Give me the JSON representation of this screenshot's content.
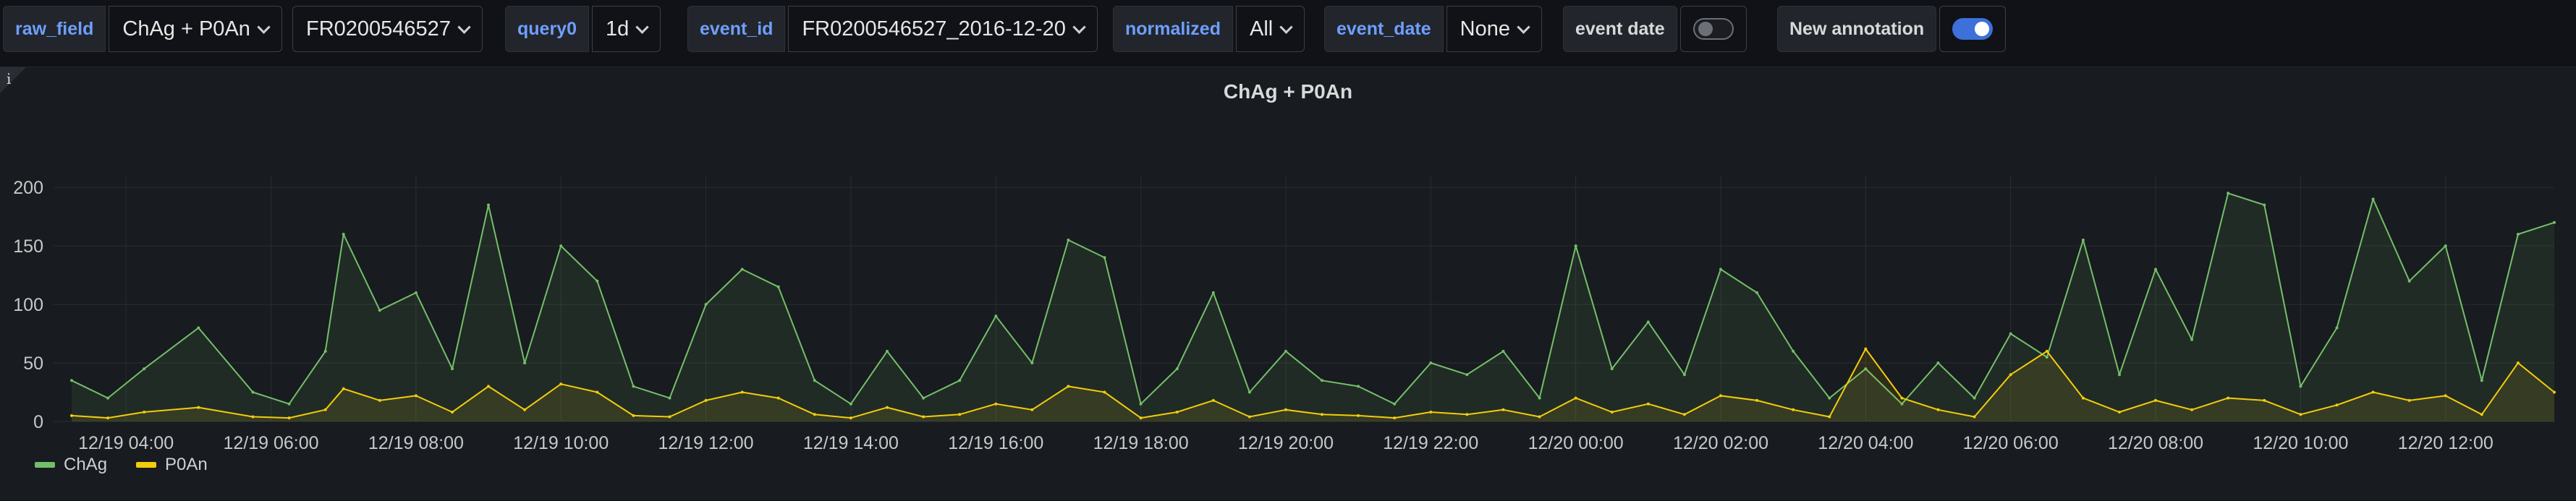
{
  "toolbar": {
    "raw_field": {
      "label": "raw_field",
      "value": "ChAg + P0An"
    },
    "station": {
      "value": "FR0200546527"
    },
    "query0": {
      "label": "query0",
      "value": "1d"
    },
    "event_id": {
      "label": "event_id",
      "value": "FR0200546527_2016-12-20"
    },
    "normalized": {
      "label": "normalized",
      "value": "All"
    },
    "event_date": {
      "label": "event_date",
      "value": "None"
    },
    "event_date_toggle": {
      "label": "event date",
      "state": "off"
    },
    "new_annotation_toggle": {
      "label": "New annotation",
      "state": "on"
    }
  },
  "panel": {
    "title": "ChAg + P0An",
    "info_icon": "info-icon",
    "info_glyph": "i"
  },
  "colors": {
    "ChAg": "#73bf69",
    "P0An": "#f2cc0c",
    "accent": "#6e9fff"
  },
  "chart_data": {
    "type": "line",
    "title": "ChAg + P0An",
    "ylim": [
      0,
      210
    ],
    "yticks": [
      0,
      50,
      100,
      150,
      200
    ],
    "x_range": [
      "12/19 03:00",
      "12/20 13:30"
    ],
    "xticks": [
      "12/19 04:00",
      "12/19 06:00",
      "12/19 08:00",
      "12/19 10:00",
      "12/19 12:00",
      "12/19 14:00",
      "12/19 16:00",
      "12/19 18:00",
      "12/19 20:00",
      "12/19 22:00",
      "12/20 00:00",
      "12/20 02:00",
      "12/20 04:00",
      "12/20 06:00",
      "12/20 08:00",
      "12/20 10:00",
      "12/20 12:00"
    ],
    "grid": true,
    "legend_position": "bottom-left",
    "series": [
      {
        "name": "ChAg",
        "x": [
          "12/19 03:15",
          "12/19 03:45",
          "12/19 04:15",
          "12/19 05:00",
          "12/19 05:45",
          "12/19 06:15",
          "12/19 06:45",
          "12/19 07:00",
          "12/19 07:30",
          "12/19 08:00",
          "12/19 08:30",
          "12/19 09:00",
          "12/19 09:30",
          "12/19 10:00",
          "12/19 10:30",
          "12/19 11:00",
          "12/19 11:30",
          "12/19 12:00",
          "12/19 12:30",
          "12/19 13:00",
          "12/19 13:30",
          "12/19 14:00",
          "12/19 14:30",
          "12/19 15:00",
          "12/19 15:30",
          "12/19 16:00",
          "12/19 16:30",
          "12/19 17:00",
          "12/19 17:30",
          "12/19 18:00",
          "12/19 18:30",
          "12/19 19:00",
          "12/19 19:30",
          "12/19 20:00",
          "12/19 20:30",
          "12/19 21:00",
          "12/19 21:30",
          "12/19 22:00",
          "12/19 22:30",
          "12/19 23:00",
          "12/19 23:30",
          "12/20 00:00",
          "12/20 00:30",
          "12/20 01:00",
          "12/20 01:30",
          "12/20 02:00",
          "12/20 02:30",
          "12/20 03:00",
          "12/20 03:30",
          "12/20 04:00",
          "12/20 04:30",
          "12/20 05:00",
          "12/20 05:30",
          "12/20 06:00",
          "12/20 06:30",
          "12/20 07:00",
          "12/20 07:30",
          "12/20 08:00",
          "12/20 08:30",
          "12/20 09:00",
          "12/20 09:30",
          "12/20 10:00",
          "12/20 10:30",
          "12/20 11:00",
          "12/20 11:30",
          "12/20 12:00",
          "12/20 12:30",
          "12/20 13:00",
          "12/20 13:30"
        ],
        "values": [
          35,
          20,
          45,
          80,
          25,
          15,
          60,
          160,
          95,
          110,
          45,
          185,
          50,
          150,
          120,
          30,
          20,
          100,
          130,
          115,
          35,
          15,
          60,
          20,
          35,
          90,
          50,
          155,
          140,
          15,
          45,
          110,
          25,
          60,
          35,
          30,
          15,
          50,
          40,
          60,
          20,
          150,
          45,
          85,
          40,
          130,
          110,
          60,
          20,
          45,
          15,
          50,
          20,
          75,
          55,
          155,
          40,
          130,
          70,
          195,
          185,
          30,
          80,
          190,
          120,
          150,
          35,
          160,
          170
        ]
      },
      {
        "name": "P0An",
        "x": [
          "12/19 03:15",
          "12/19 03:45",
          "12/19 04:15",
          "12/19 05:00",
          "12/19 05:45",
          "12/19 06:15",
          "12/19 06:45",
          "12/19 07:00",
          "12/19 07:30",
          "12/19 08:00",
          "12/19 08:30",
          "12/19 09:00",
          "12/19 09:30",
          "12/19 10:00",
          "12/19 10:30",
          "12/19 11:00",
          "12/19 11:30",
          "12/19 12:00",
          "12/19 12:30",
          "12/19 13:00",
          "12/19 13:30",
          "12/19 14:00",
          "12/19 14:30",
          "12/19 15:00",
          "12/19 15:30",
          "12/19 16:00",
          "12/19 16:30",
          "12/19 17:00",
          "12/19 17:30",
          "12/19 18:00",
          "12/19 18:30",
          "12/19 19:00",
          "12/19 19:30",
          "12/19 20:00",
          "12/19 20:30",
          "12/19 21:00",
          "12/19 21:30",
          "12/19 22:00",
          "12/19 22:30",
          "12/19 23:00",
          "12/19 23:30",
          "12/20 00:00",
          "12/20 00:30",
          "12/20 01:00",
          "12/20 01:30",
          "12/20 02:00",
          "12/20 02:30",
          "12/20 03:00",
          "12/20 03:30",
          "12/20 04:00",
          "12/20 04:30",
          "12/20 05:00",
          "12/20 05:30",
          "12/20 06:00",
          "12/20 06:30",
          "12/20 07:00",
          "12/20 07:30",
          "12/20 08:00",
          "12/20 08:30",
          "12/20 09:00",
          "12/20 09:30",
          "12/20 10:00",
          "12/20 10:30",
          "12/20 11:00",
          "12/20 11:30",
          "12/20 12:00",
          "12/20 12:30",
          "12/20 13:00",
          "12/20 13:30"
        ],
        "values": [
          5,
          3,
          8,
          12,
          4,
          3,
          10,
          28,
          18,
          22,
          8,
          30,
          10,
          32,
          25,
          5,
          4,
          18,
          25,
          20,
          6,
          3,
          12,
          4,
          6,
          15,
          10,
          30,
          25,
          3,
          8,
          18,
          4,
          10,
          6,
          5,
          3,
          8,
          6,
          10,
          4,
          20,
          8,
          15,
          6,
          22,
          18,
          10,
          4,
          62,
          20,
          10,
          4,
          40,
          60,
          20,
          8,
          18,
          10,
          20,
          18,
          6,
          14,
          25,
          18,
          22,
          6,
          50,
          25
        ]
      }
    ]
  }
}
